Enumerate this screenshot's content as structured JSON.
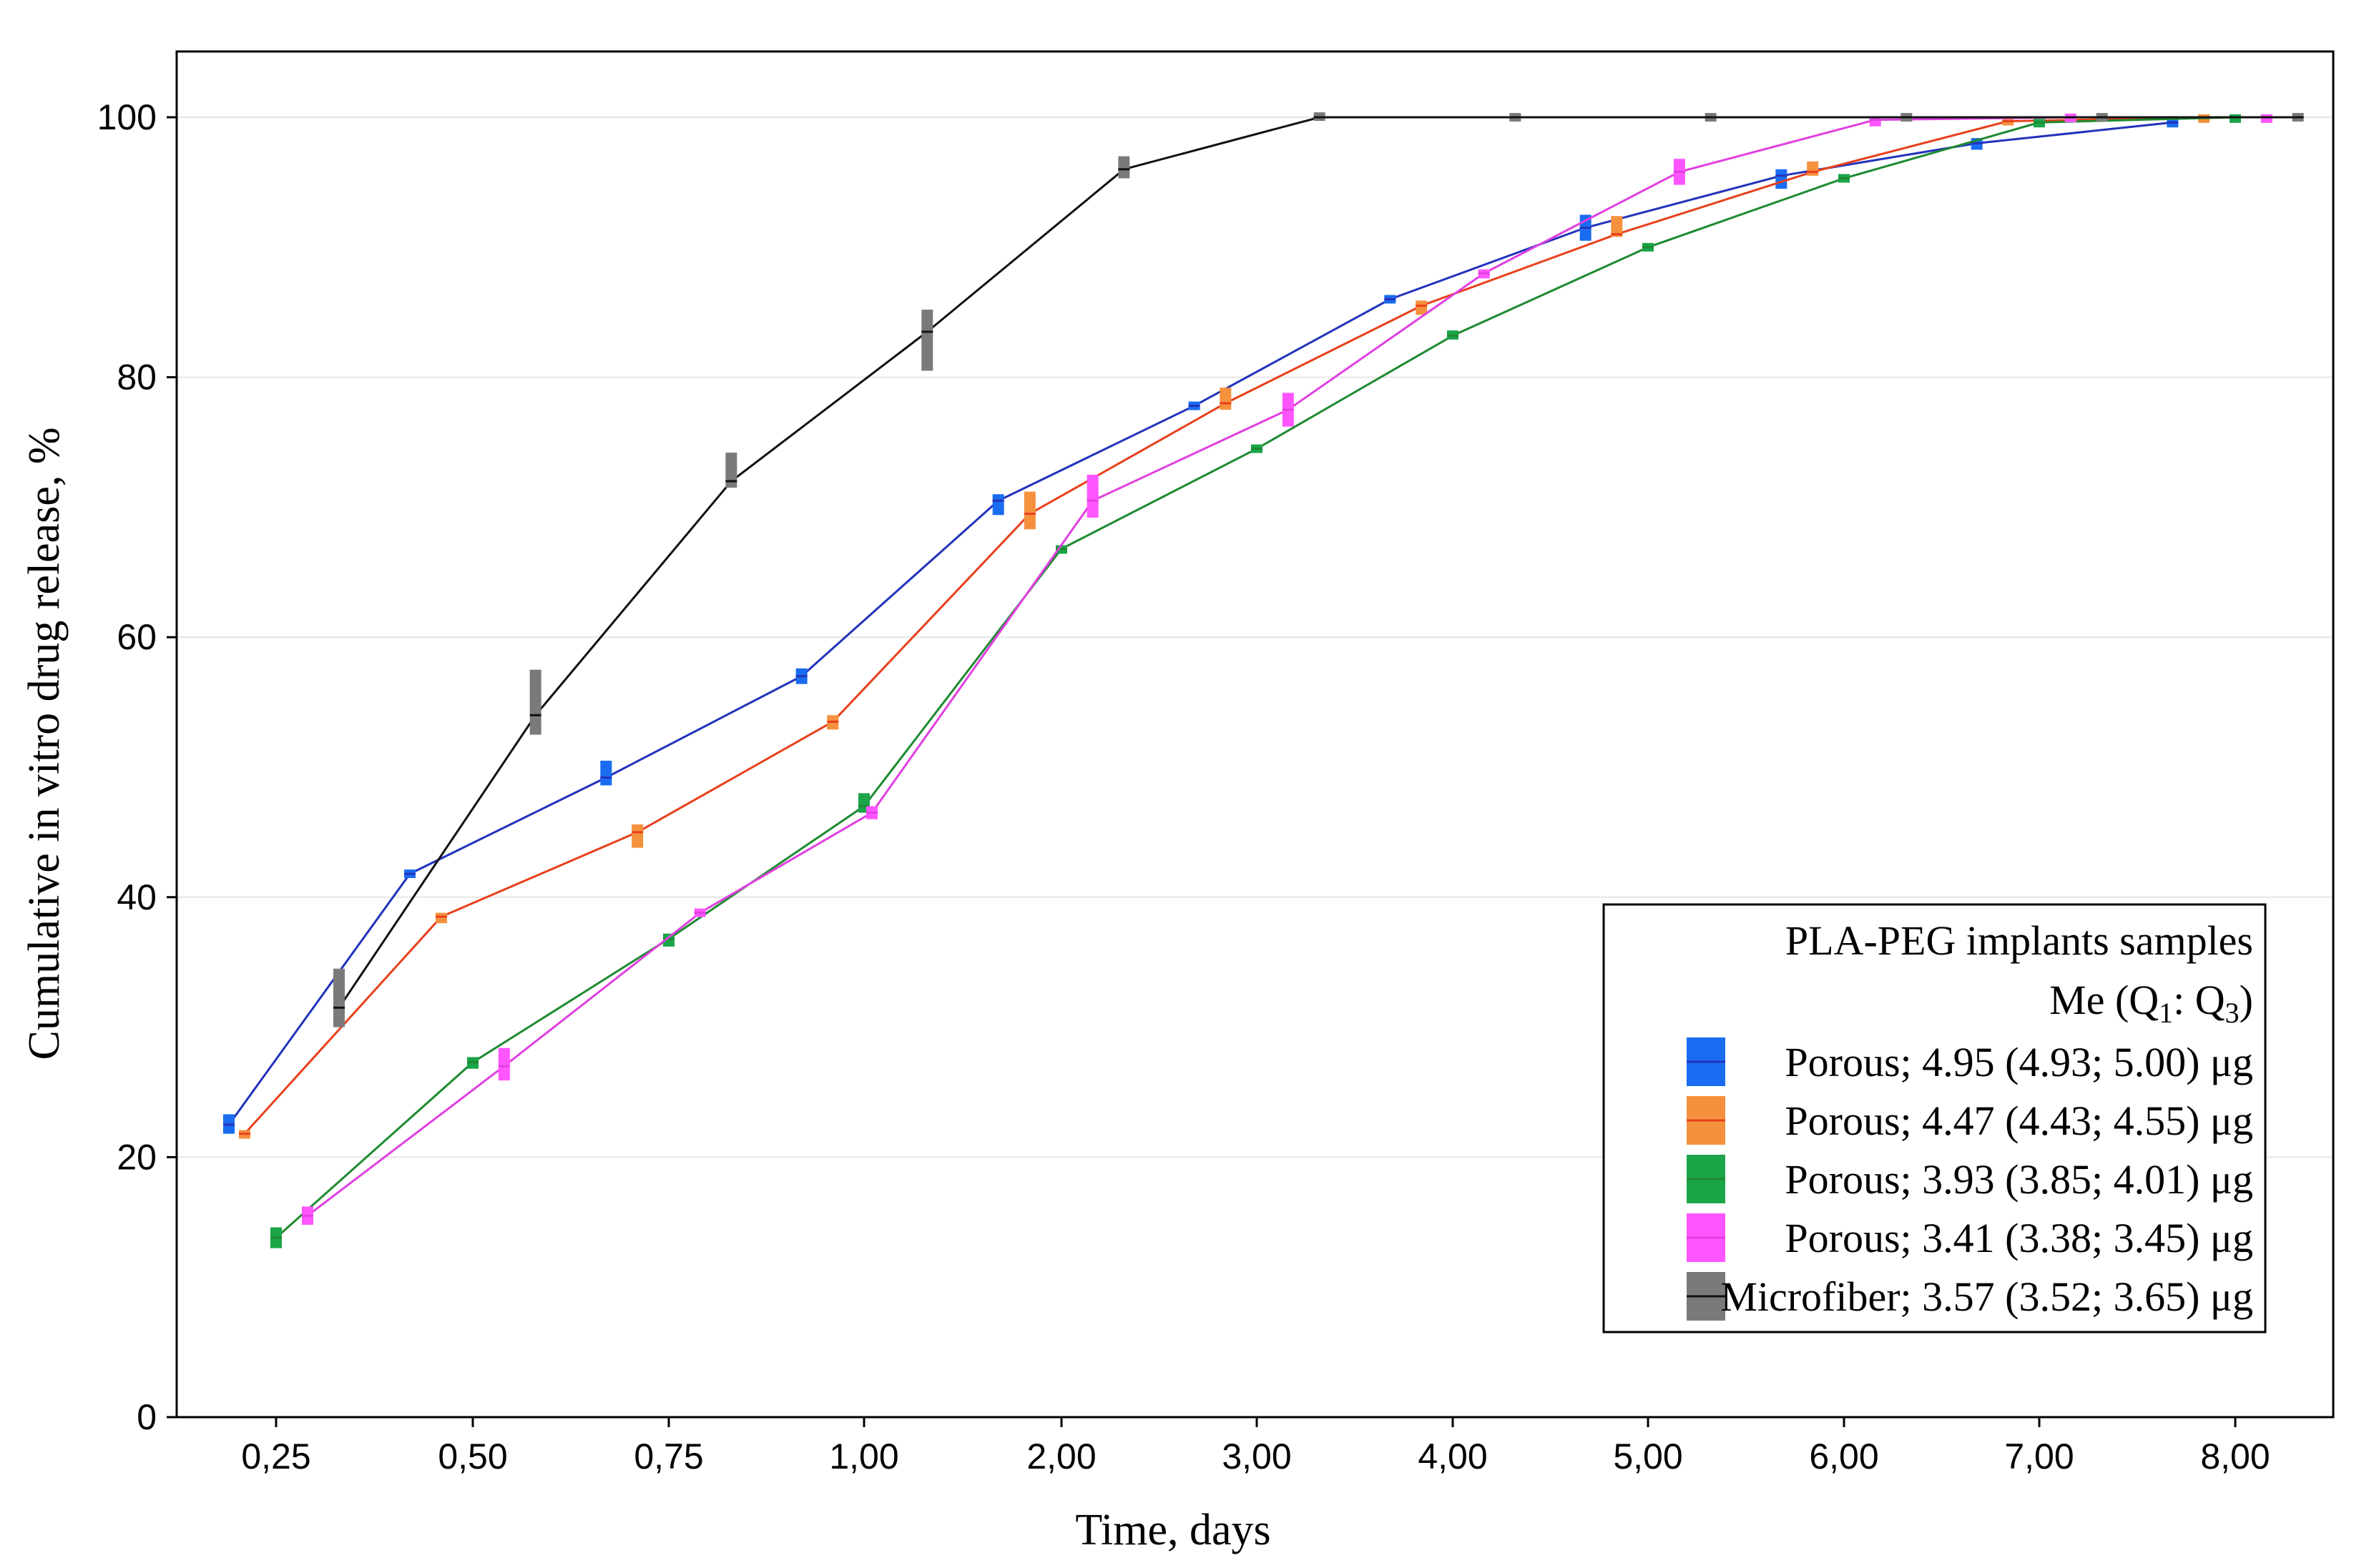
{
  "chart_data": {
    "type": "line",
    "xlabel": "Time, days",
    "ylabel": "Cumulative in vitro drug release, %",
    "x_tick_labels": [
      "0,25",
      "0,50",
      "0,75",
      "1,00",
      "2,00",
      "3,00",
      "4,00",
      "5,00",
      "6,00",
      "7,00",
      "8,00"
    ],
    "y_ticks": [
      0,
      20,
      40,
      60,
      80,
      100
    ],
    "ylim": [
      0,
      105
    ],
    "grid": true,
    "legend": {
      "position": "bottom-right",
      "title": "PLA-PEG implants samples",
      "subtitle": {
        "pre": "Me (Q",
        "q1": "1",
        "mid": ": Q",
        "q3": "3",
        "post": ")"
      }
    },
    "series": [
      {
        "name": "Porous; 4.95 (4.93; 5.00) μg",
        "color": "#1a6cf0",
        "line_color": "#2233bb",
        "points": [
          {
            "t": 0.19,
            "y": 22.5,
            "lo": 21.8,
            "hi": 23.3
          },
          {
            "t": 0.42,
            "y": 41.8,
            "lo": 41.5,
            "hi": 42.1
          },
          {
            "t": 0.67,
            "y": 49.2,
            "lo": 48.6,
            "hi": 50.5
          },
          {
            "t": 0.92,
            "y": 57.0,
            "lo": 56.4,
            "hi": 57.6
          },
          {
            "t": 1.68,
            "y": 70.5,
            "lo": 69.4,
            "hi": 71.0
          },
          {
            "t": 2.68,
            "y": 77.8,
            "lo": 77.5,
            "hi": 78.1
          },
          {
            "t": 3.68,
            "y": 86.0,
            "lo": 85.8,
            "hi": 86.2
          },
          {
            "t": 4.68,
            "y": 91.5,
            "lo": 90.5,
            "hi": 92.5
          },
          {
            "t": 5.68,
            "y": 95.5,
            "lo": 94.5,
            "hi": 96.0
          },
          {
            "t": 6.68,
            "y": 98.0,
            "lo": 97.5,
            "hi": 98.4
          },
          {
            "t": 7.68,
            "y": 99.6,
            "lo": 99.3,
            "hi": 99.8
          }
        ]
      },
      {
        "name": "Porous; 4.47 (4.43; 4.55) μg",
        "color": "#f5913d",
        "line_color": "#e8401c",
        "points": [
          {
            "t": 0.21,
            "y": 21.8,
            "lo": 21.5,
            "hi": 22.0
          },
          {
            "t": 0.46,
            "y": 38.5,
            "lo": 38.0,
            "hi": 38.8
          },
          {
            "t": 0.71,
            "y": 45.0,
            "lo": 43.8,
            "hi": 45.6
          },
          {
            "t": 0.96,
            "y": 53.5,
            "lo": 52.9,
            "hi": 54.0
          },
          {
            "t": 1.84,
            "y": 69.5,
            "lo": 68.3,
            "hi": 71.2
          },
          {
            "t": 2.84,
            "y": 78.0,
            "lo": 77.5,
            "hi": 79.2
          },
          {
            "t": 3.84,
            "y": 85.5,
            "lo": 84.8,
            "hi": 85.9
          },
          {
            "t": 4.84,
            "y": 91.0,
            "lo": 90.8,
            "hi": 92.4
          },
          {
            "t": 5.84,
            "y": 95.8,
            "lo": 95.5,
            "hi": 96.6
          },
          {
            "t": 6.84,
            "y": 99.7,
            "lo": 99.5,
            "hi": 99.9
          },
          {
            "t": 7.84,
            "y": 100.0,
            "lo": 99.8,
            "hi": 100.0
          }
        ]
      },
      {
        "name": "Porous; 3.93 (3.85; 4.01) μg",
        "color": "#1aa548",
        "line_color": "#1e8a30",
        "points": [
          {
            "t": 0.25,
            "y": 13.8,
            "lo": 13.0,
            "hi": 14.6
          },
          {
            "t": 0.5,
            "y": 27.3,
            "lo": 26.8,
            "hi": 27.7
          },
          {
            "t": 0.75,
            "y": 36.8,
            "lo": 36.2,
            "hi": 37.2
          },
          {
            "t": 1.0,
            "y": 47.0,
            "lo": 46.5,
            "hi": 48.0
          },
          {
            "t": 2.0,
            "y": 66.8,
            "lo": 66.5,
            "hi": 67.0
          },
          {
            "t": 3.0,
            "y": 74.5,
            "lo": 74.2,
            "hi": 74.8
          },
          {
            "t": 4.0,
            "y": 83.2,
            "lo": 82.9,
            "hi": 83.6
          },
          {
            "t": 5.0,
            "y": 90.0,
            "lo": 89.7,
            "hi": 90.3
          },
          {
            "t": 6.0,
            "y": 95.3,
            "lo": 95.0,
            "hi": 95.6
          },
          {
            "t": 7.0,
            "y": 99.6,
            "lo": 99.3,
            "hi": 99.8
          },
          {
            "t": 8.0,
            "y": 100.0,
            "lo": 99.8,
            "hi": 100.0
          }
        ]
      },
      {
        "name": "Porous; 3.41 (3.38; 3.45) μg",
        "color": "#ff55ff",
        "line_color": "#e040e0",
        "points": [
          {
            "t": 0.29,
            "y": 15.5,
            "lo": 14.8,
            "hi": 16.2
          },
          {
            "t": 0.54,
            "y": 27.0,
            "lo": 25.9,
            "hi": 28.4
          },
          {
            "t": 0.79,
            "y": 38.8,
            "lo": 38.6,
            "hi": 39.0
          },
          {
            "t": 1.04,
            "y": 46.5,
            "lo": 46.0,
            "hi": 47.0
          },
          {
            "t": 2.16,
            "y": 70.5,
            "lo": 69.2,
            "hi": 72.5
          },
          {
            "t": 3.16,
            "y": 77.5,
            "lo": 76.2,
            "hi": 78.8
          },
          {
            "t": 4.16,
            "y": 88.0,
            "lo": 87.6,
            "hi": 88.3
          },
          {
            "t": 5.16,
            "y": 95.8,
            "lo": 94.8,
            "hi": 96.8
          },
          {
            "t": 6.16,
            "y": 99.8,
            "lo": 99.3,
            "hi": 100.0
          },
          {
            "t": 7.16,
            "y": 100.0,
            "lo": 99.9,
            "hi": 100.0
          },
          {
            "t": 8.16,
            "y": 100.0,
            "lo": 99.8,
            "hi": 100.0
          }
        ]
      },
      {
        "name": "Microfiber; 3.57 (3.52; 3.65) μg",
        "color": "#7a7a7a",
        "line_color": "#111111",
        "points": [
          {
            "t": 0.33,
            "y": 31.5,
            "lo": 30.0,
            "hi": 34.5
          },
          {
            "t": 0.58,
            "y": 54.0,
            "lo": 52.5,
            "hi": 57.5
          },
          {
            "t": 0.83,
            "y": 72.0,
            "lo": 71.5,
            "hi": 74.2
          },
          {
            "t": 1.32,
            "y": 83.5,
            "lo": 80.5,
            "hi": 85.2
          },
          {
            "t": 2.32,
            "y": 96.0,
            "lo": 95.3,
            "hi": 97.0
          },
          {
            "t": 3.32,
            "y": 100.0,
            "lo": 99.9,
            "hi": 100.2
          },
          {
            "t": 4.32,
            "y": 100.0,
            "lo": 99.9,
            "hi": 100.1
          },
          {
            "t": 5.32,
            "y": 100.0,
            "lo": 100.0,
            "hi": 100.0
          },
          {
            "t": 6.32,
            "y": 100.0,
            "lo": 100.0,
            "hi": 100.0
          },
          {
            "t": 7.32,
            "y": 100.0,
            "lo": 100.0,
            "hi": 100.0
          },
          {
            "t": 8.32,
            "y": 100.0,
            "lo": 100.0,
            "hi": 100.0
          }
        ]
      }
    ]
  }
}
